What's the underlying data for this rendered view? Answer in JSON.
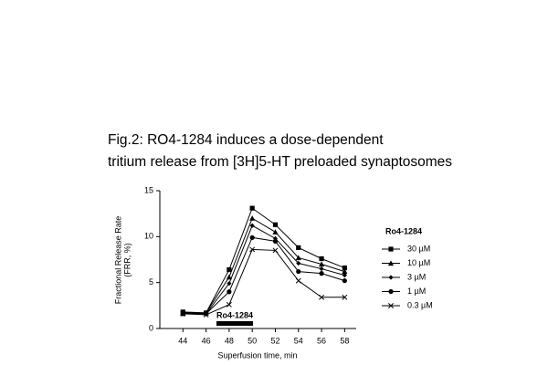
{
  "chart_data": {
    "type": "line",
    "title": [
      "Fig.2: RO4-1284 induces a dose-dependent",
      "tritium release from [3H]5-HT preloaded synaptosomes"
    ],
    "x_label": "Superfusion time, min",
    "y_label": [
      "Fractional Release Rate",
      "(FRR, %)"
    ],
    "annotation": "Ro4-1284",
    "legend_title": "Ro4-1284",
    "x": [
      44,
      46,
      48,
      50,
      52,
      54,
      56,
      58
    ],
    "xlim": [
      42,
      59
    ],
    "xticks": [
      44,
      46,
      48,
      50,
      52,
      54,
      56,
      58
    ],
    "ylim": [
      0,
      15
    ],
    "yticks": [
      0,
      5,
      10,
      15
    ],
    "series": [
      {
        "name": "30 µM",
        "color": "#000000",
        "marker": "square",
        "values": [
          1.8,
          1.7,
          6.4,
          13.1,
          11.3,
          8.8,
          7.6,
          6.6
        ]
      },
      {
        "name": "10 µM",
        "color": "#000000",
        "marker": "triangle",
        "values": [
          1.7,
          1.7,
          5.6,
          12.0,
          10.5,
          7.7,
          7.0,
          6.2
        ]
      },
      {
        "name": "3 µM",
        "color": "#000000",
        "marker": "diamond",
        "values": [
          1.7,
          1.6,
          4.9,
          11.2,
          9.8,
          7.1,
          6.5,
          5.8
        ]
      },
      {
        "name": "1 µM",
        "color": "#000000",
        "marker": "circle",
        "values": [
          1.6,
          1.6,
          4.0,
          9.9,
          9.5,
          6.2,
          6.0,
          5.2
        ]
      },
      {
        "name": "0.3 µM",
        "color": "#000000",
        "marker": "x",
        "values": [
          1.6,
          1.5,
          2.6,
          8.6,
          8.5,
          5.2,
          3.4,
          3.4
        ]
      }
    ]
  }
}
